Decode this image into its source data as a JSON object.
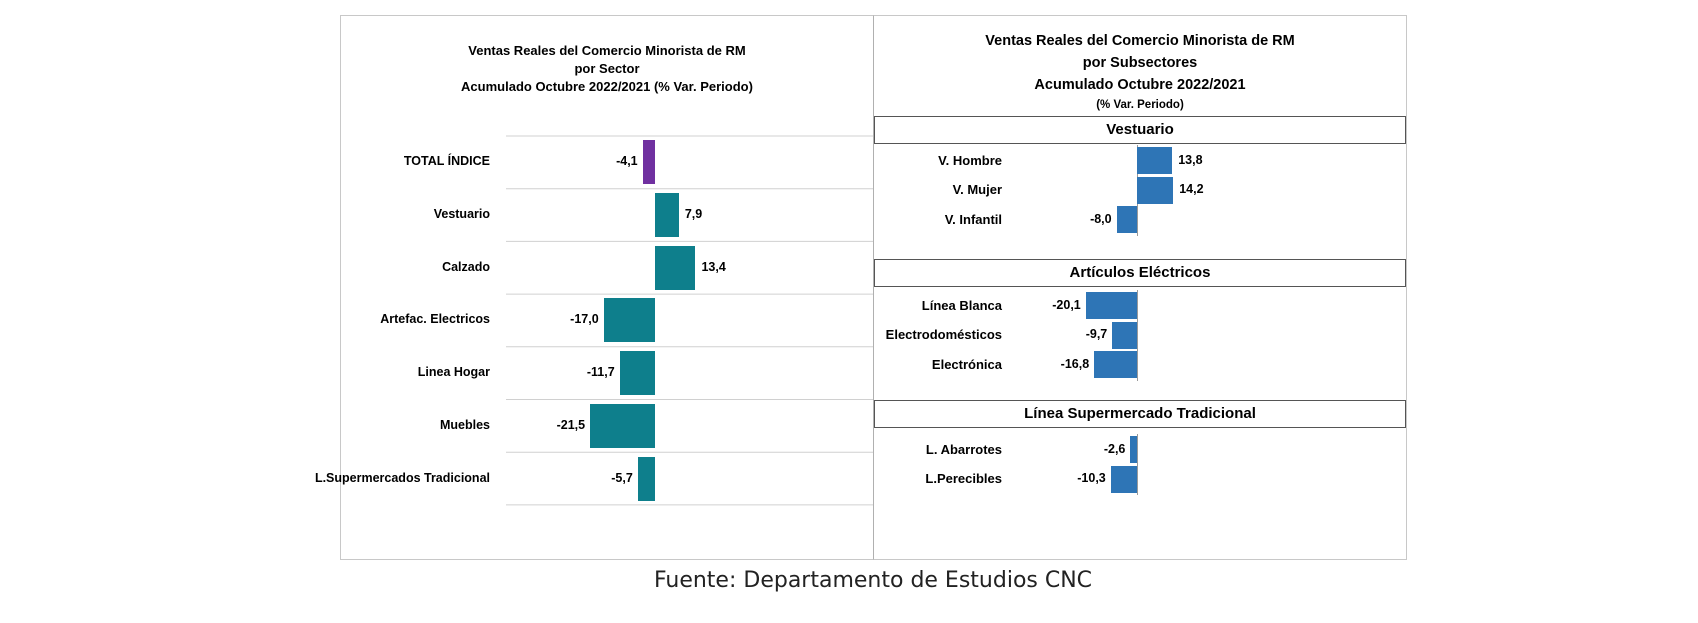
{
  "chart_data": [
    {
      "type": "bar",
      "orientation": "horizontal",
      "title_lines": [
        "Ventas Reales del Comercio Minorista de RM",
        "por Sector",
        "Acumulado Octubre 2022/2021 (% Var. Periodo)"
      ],
      "categories": [
        "TOTAL ÍNDICE",
        "Vestuario",
        "Calzado",
        "Artefac. Electricos",
        "Linea Hogar",
        "Muebles",
        "L.Supermercados Tradicional"
      ],
      "values": [
        -4.1,
        7.9,
        13.4,
        -17.0,
        -11.7,
        -21.5,
        -5.7
      ],
      "value_labels": [
        "-4,1",
        "7,9",
        "13,4",
        "-17,0",
        "-11,7",
        "-21,5",
        "-5,7"
      ],
      "colors": [
        "#7030a0",
        "#0e7f8c",
        "#0e7f8c",
        "#0e7f8c",
        "#0e7f8c",
        "#0e7f8c",
        "#0e7f8c"
      ],
      "grid": "horizontal separators"
    },
    {
      "type": "bar",
      "orientation": "horizontal",
      "title_lines": [
        "Ventas Reales del Comercio Minorista de RM",
        "por Subsectores",
        "Acumulado Octubre 2022/2021"
      ],
      "subtitle": "(% Var. Periodo)",
      "color": "#2e75b6",
      "groups": [
        {
          "name": "Vestuario",
          "categories": [
            "V. Hombre",
            "V. Mujer",
            "V. Infantil"
          ],
          "values": [
            13.8,
            14.2,
            -8.0
          ],
          "value_labels": [
            "13,8",
            "14,2",
            "-8,0"
          ]
        },
        {
          "name": "Artículos Eléctricos",
          "categories": [
            "Línea Blanca",
            "Electrodomésticos",
            "Electrónica"
          ],
          "values": [
            -20.1,
            -9.7,
            -16.8
          ],
          "value_labels": [
            "-20,1",
            "-9,7",
            "-16,8"
          ]
        },
        {
          "name": "Línea  Supermercado Tradicional",
          "categories": [
            "L. Abarrotes",
            "L.Perecibles"
          ],
          "values": [
            -2.6,
            -10.3
          ],
          "value_labels": [
            "-2,6",
            "-10,3"
          ]
        }
      ]
    }
  ],
  "source_text": "Fuente: Departamento de Estudios CNC"
}
